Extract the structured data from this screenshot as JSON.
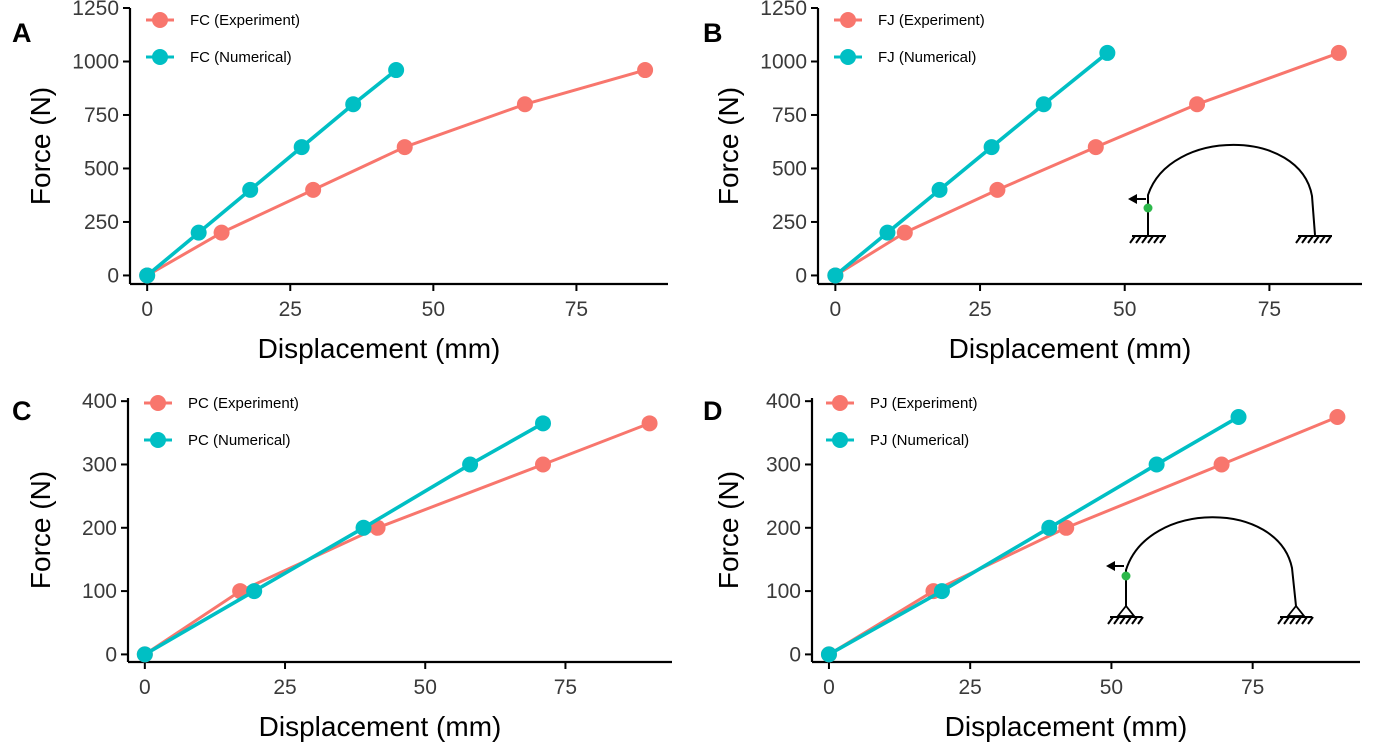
{
  "colors": {
    "experiment": "#F8766D",
    "numerical": "#00BFC4",
    "load_point": "#2DB84B"
  },
  "chart_data": [
    {
      "type": "line",
      "panel": "A",
      "xlabel": "Displacement (mm)",
      "ylabel": "Force (N)",
      "xlim": [
        -3,
        91
      ],
      "ylim": [
        -40,
        1250
      ],
      "xticks": [
        0,
        25,
        50,
        75
      ],
      "yticks": [
        0,
        250,
        500,
        750,
        1000,
        1250
      ],
      "legend_position": "top-left",
      "grid": false,
      "inset": null,
      "series": [
        {
          "name": "FC (Experiment)",
          "color": "#F8766D",
          "points": [
            [
              0,
              0
            ],
            [
              13,
              200
            ],
            [
              29,
              400
            ],
            [
              45,
              600
            ],
            [
              66,
              800
            ],
            [
              87,
              960
            ]
          ]
        },
        {
          "name": "FC (Numerical)",
          "color": "#00BFC4",
          "points": [
            [
              0,
              0
            ],
            [
              9,
              200
            ],
            [
              18,
              400
            ],
            [
              27,
              600
            ],
            [
              36,
              800
            ],
            [
              43.5,
              960
            ]
          ]
        }
      ]
    },
    {
      "type": "line",
      "panel": "B",
      "xlabel": "Displacement (mm)",
      "ylabel": "Force (N)",
      "xlim": [
        -3,
        91
      ],
      "ylim": [
        -40,
        1250
      ],
      "xticks": [
        0,
        25,
        50,
        75
      ],
      "yticks": [
        0,
        250,
        500,
        750,
        1000,
        1250
      ],
      "legend_position": "top-left",
      "grid": false,
      "inset": "fixed",
      "series": [
        {
          "name": "FJ (Experiment)",
          "color": "#F8766D",
          "points": [
            [
              0,
              0
            ],
            [
              12,
              200
            ],
            [
              28,
              400
            ],
            [
              45,
              600
            ],
            [
              62.5,
              800
            ],
            [
              87,
              1040
            ]
          ]
        },
        {
          "name": "FJ (Numerical)",
          "color": "#00BFC4",
          "points": [
            [
              0,
              0
            ],
            [
              9,
              200
            ],
            [
              18,
              400
            ],
            [
              27,
              600
            ],
            [
              36,
              800
            ],
            [
              47,
              1040
            ]
          ]
        }
      ]
    },
    {
      "type": "line",
      "panel": "C",
      "xlabel": "Displacement (mm)",
      "ylabel": "Force (N)",
      "xlim": [
        -3,
        94
      ],
      "ylim": [
        -12,
        405
      ],
      "xticks": [
        0,
        25,
        50,
        75
      ],
      "yticks": [
        0,
        100,
        200,
        300,
        400
      ],
      "legend_position": "top-left",
      "grid": false,
      "inset": null,
      "series": [
        {
          "name": "PC (Experiment)",
          "color": "#F8766D",
          "points": [
            [
              0,
              0
            ],
            [
              17,
              100
            ],
            [
              41.5,
              200
            ],
            [
              71,
              300
            ],
            [
              90,
              365
            ]
          ]
        },
        {
          "name": "PC (Numerical)",
          "color": "#00BFC4",
          "points": [
            [
              0,
              0
            ],
            [
              19.5,
              100
            ],
            [
              39,
              200
            ],
            [
              58,
              300
            ],
            [
              71,
              365
            ]
          ]
        }
      ]
    },
    {
      "type": "line",
      "panel": "D",
      "xlabel": "Displacement (mm)",
      "ylabel": "Force (N)",
      "xlim": [
        -3,
        94
      ],
      "ylim": [
        -12,
        405
      ],
      "xticks": [
        0,
        25,
        50,
        75
      ],
      "yticks": [
        0,
        100,
        200,
        300,
        400
      ],
      "legend_position": "top-left",
      "grid": false,
      "inset": "pinned",
      "series": [
        {
          "name": "PJ (Experiment)",
          "color": "#F8766D",
          "points": [
            [
              0,
              0
            ],
            [
              18.5,
              100
            ],
            [
              42,
              200
            ],
            [
              69.5,
              300
            ],
            [
              90,
              375
            ]
          ]
        },
        {
          "name": "PJ (Numerical)",
          "color": "#00BFC4",
          "points": [
            [
              0,
              0
            ],
            [
              20,
              100
            ],
            [
              39,
              200
            ],
            [
              58,
              300
            ],
            [
              72.5,
              375
            ]
          ]
        }
      ]
    }
  ]
}
